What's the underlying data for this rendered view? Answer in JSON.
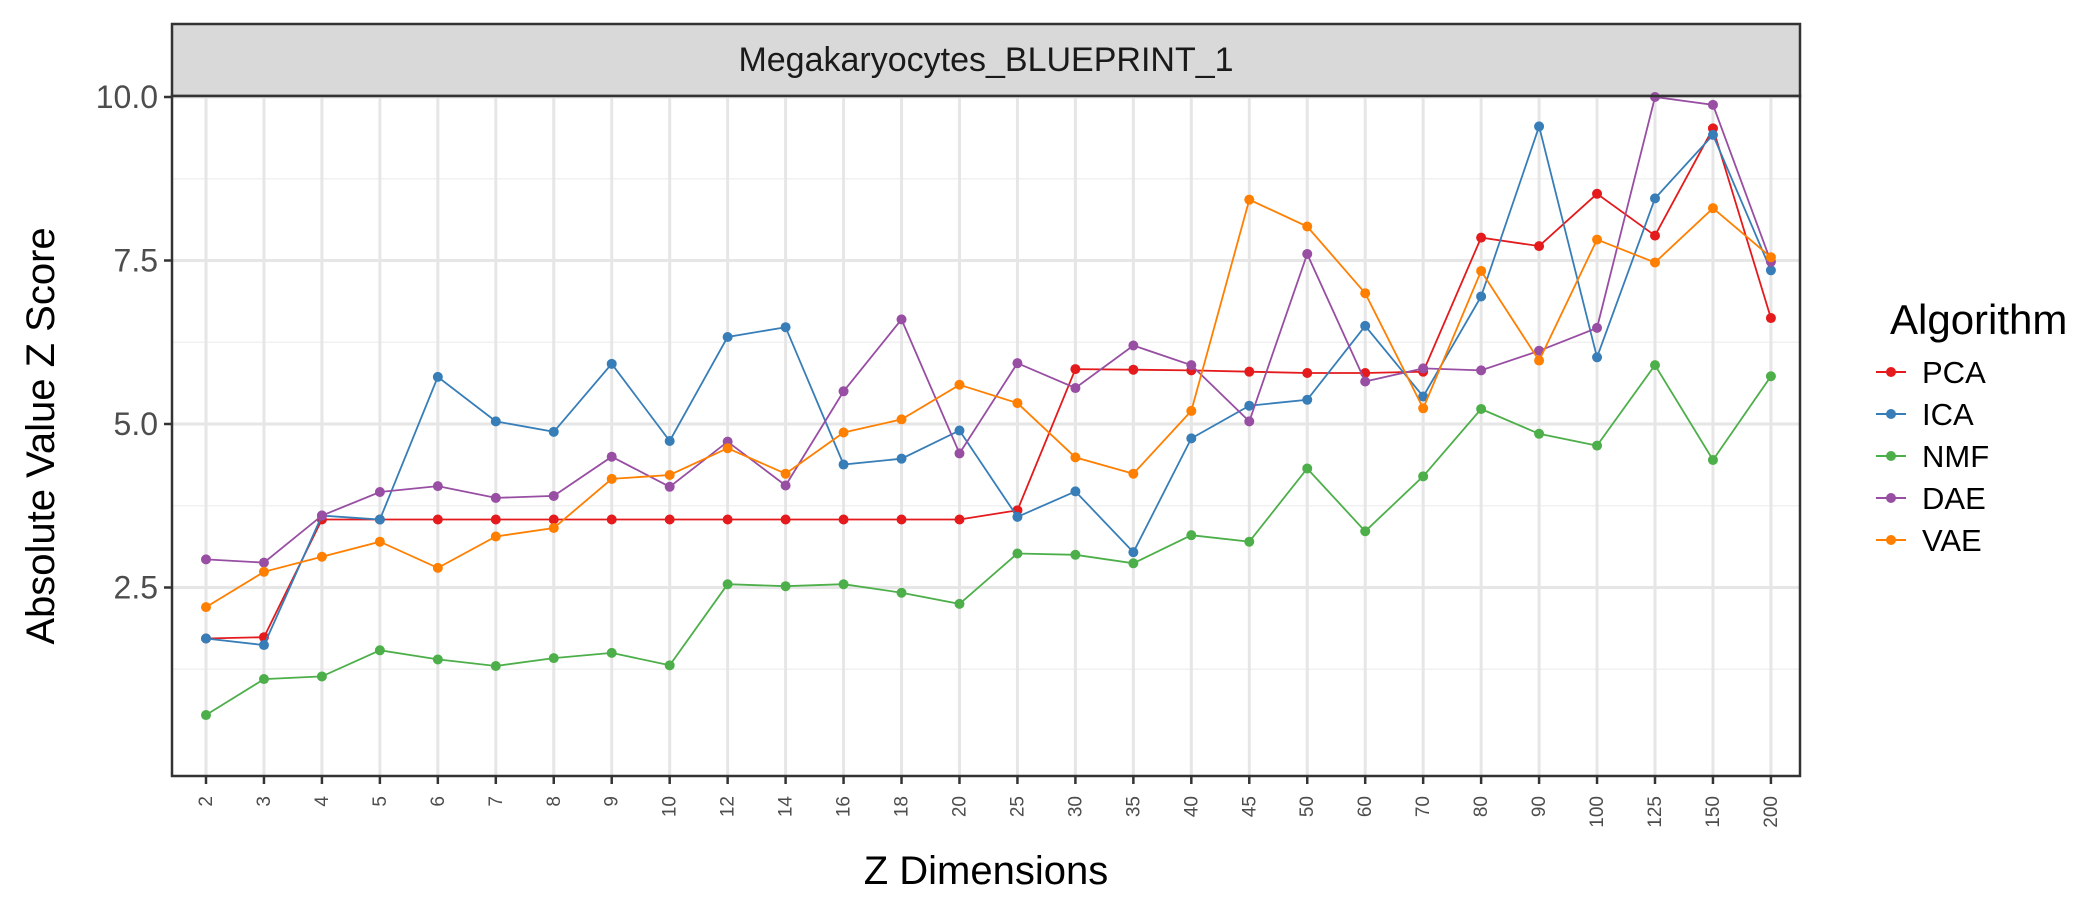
{
  "chart_data": {
    "type": "line",
    "title": "Megakaryocytes_BLUEPRINT_1",
    "xlabel": "Z Dimensions",
    "ylabel": "Absolute Value Z Score",
    "categories": [
      "2",
      "3",
      "4",
      "5",
      "6",
      "7",
      "8",
      "9",
      "10",
      "12",
      "14",
      "16",
      "18",
      "20",
      "25",
      "30",
      "35",
      "40",
      "45",
      "50",
      "60",
      "70",
      "80",
      "90",
      "100",
      "125",
      "150",
      "200"
    ],
    "y_ticks": [
      "2.5",
      "5.0",
      "7.5",
      "10.0"
    ],
    "ylim": [
      0.0,
      10.45
    ],
    "grid": true,
    "legend_title": "Algorithm",
    "legend_position": "right",
    "series": [
      {
        "name": "PCA",
        "color": "#e41a1c",
        "values": [
          1.72,
          1.74,
          3.54,
          3.54,
          3.54,
          3.54,
          3.54,
          3.54,
          3.54,
          3.54,
          3.54,
          3.54,
          3.54,
          3.54,
          3.68,
          5.84,
          5.83,
          5.82,
          5.8,
          5.78,
          5.78,
          5.8,
          7.85,
          7.72,
          8.52,
          7.88,
          9.52,
          6.62
        ]
      },
      {
        "name": "ICA",
        "color": "#377eb8",
        "values": [
          1.72,
          1.62,
          3.6,
          3.54,
          5.72,
          5.04,
          4.88,
          5.92,
          4.74,
          6.33,
          6.48,
          4.38,
          4.47,
          4.9,
          3.58,
          3.97,
          3.04,
          4.78,
          5.28,
          5.37,
          6.5,
          5.42,
          6.95,
          9.55,
          6.02,
          8.45,
          9.42,
          7.35
        ]
      },
      {
        "name": "NMF",
        "color": "#4daf4a",
        "values": [
          0.55,
          1.1,
          1.14,
          1.54,
          1.4,
          1.3,
          1.42,
          1.5,
          1.31,
          2.55,
          2.52,
          2.55,
          2.42,
          2.25,
          3.02,
          3.0,
          2.87,
          3.3,
          3.2,
          4.32,
          3.36,
          4.2,
          5.23,
          4.85,
          4.67,
          5.9,
          4.45,
          5.73
        ]
      },
      {
        "name": "DAE",
        "color": "#984ea3",
        "values": [
          2.93,
          2.88,
          3.6,
          3.96,
          4.05,
          3.87,
          3.9,
          4.5,
          4.04,
          4.73,
          4.06,
          5.5,
          6.6,
          4.55,
          5.93,
          5.55,
          6.2,
          5.9,
          5.04,
          7.6,
          5.65,
          5.85,
          5.82,
          6.12,
          6.47,
          10.0,
          9.88,
          7.48
        ]
      },
      {
        "name": "VAE",
        "color": "#ff7f00",
        "values": [
          2.2,
          2.74,
          2.97,
          3.2,
          2.8,
          3.28,
          3.41,
          4.16,
          4.22,
          4.63,
          4.24,
          4.87,
          5.07,
          5.6,
          5.32,
          4.49,
          4.24,
          5.2,
          8.43,
          8.02,
          7.0,
          5.24,
          7.34,
          5.97,
          7.82,
          7.47,
          8.3,
          7.55
        ]
      }
    ]
  }
}
